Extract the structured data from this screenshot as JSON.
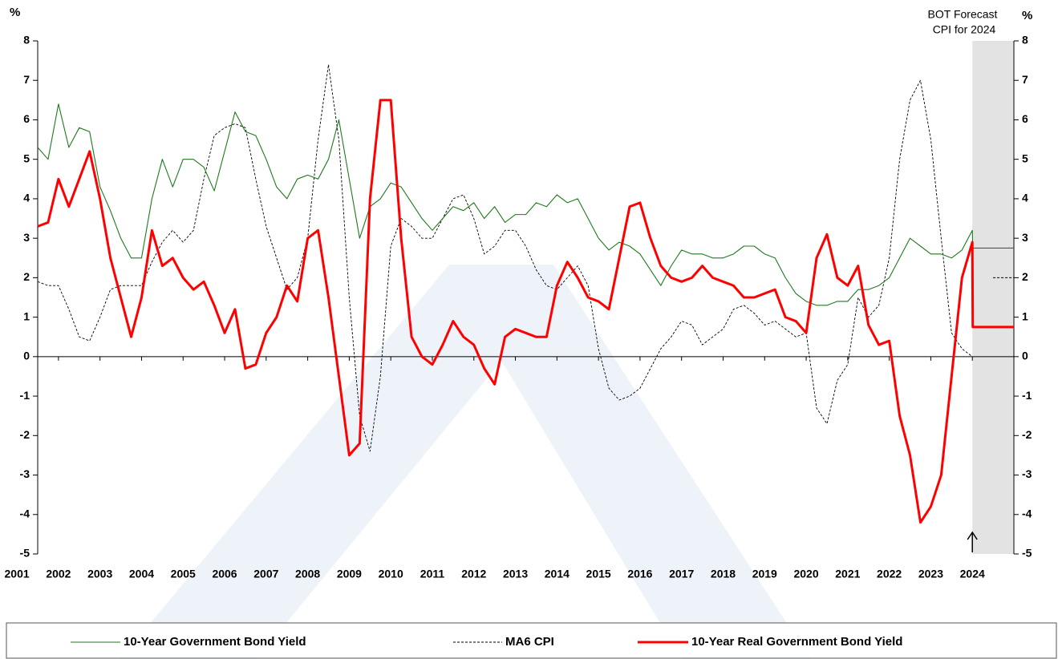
{
  "chart_data": {
    "type": "line",
    "y_label": "%",
    "y2_label": "%",
    "annotation": [
      "BOT Forecast",
      "CPI for 2024"
    ],
    "forecast_start": 2024,
    "xlim": [
      2001.5,
      2025
    ],
    "xticks": [
      2001,
      2002,
      2003,
      2004,
      2005,
      2006,
      2007,
      2008,
      2009,
      2010,
      2011,
      2012,
      2013,
      2014,
      2015,
      2016,
      2017,
      2018,
      2019,
      2020,
      2021,
      2022,
      2023,
      2024
    ],
    "ylim": [
      -5,
      8
    ],
    "yticks": [
      -5,
      -4,
      -3,
      -2,
      -1,
      0,
      1,
      2,
      3,
      4,
      5,
      6,
      7,
      8
    ],
    "x": [
      2001.5,
      2001.75,
      2002,
      2002.25,
      2002.5,
      2002.75,
      2003,
      2003.25,
      2003.5,
      2003.75,
      2004,
      2004.25,
      2004.5,
      2004.75,
      2005,
      2005.25,
      2005.5,
      2005.75,
      2006,
      2006.25,
      2006.5,
      2006.75,
      2007,
      2007.25,
      2007.5,
      2007.75,
      2008,
      2008.25,
      2008.5,
      2008.75,
      2009,
      2009.25,
      2009.5,
      2009.75,
      2010,
      2010.25,
      2010.5,
      2010.75,
      2011,
      2011.25,
      2011.5,
      2011.75,
      2012,
      2012.25,
      2012.5,
      2012.75,
      2013,
      2013.25,
      2013.5,
      2013.75,
      2014,
      2014.25,
      2014.5,
      2014.75,
      2015,
      2015.25,
      2015.5,
      2015.75,
      2016,
      2016.25,
      2016.5,
      2016.75,
      2017,
      2017.25,
      2017.5,
      2017.75,
      2018,
      2018.25,
      2018.5,
      2018.75,
      2019,
      2019.25,
      2019.5,
      2019.75,
      2020,
      2020.25,
      2020.5,
      2020.75,
      2021,
      2021.25,
      2021.5,
      2021.75,
      2022,
      2022.25,
      2022.5,
      2022.75,
      2023,
      2023.25,
      2023.5,
      2023.75,
      2024,
      2024.01,
      2024.5,
      2025
    ],
    "series": [
      {
        "name": "10-Year Government Bond Yield",
        "color": "#1e7a1e",
        "dashed": false,
        "values": [
          5.3,
          5.0,
          6.4,
          5.3,
          5.8,
          5.7,
          4.3,
          3.7,
          3.0,
          2.5,
          2.5,
          4.0,
          5.0,
          4.3,
          5.0,
          5.0,
          4.8,
          4.2,
          5.2,
          6.2,
          5.7,
          5.6,
          5.0,
          4.3,
          4.0,
          4.5,
          4.6,
          4.5,
          5.0,
          6.0,
          4.5,
          3.0,
          3.8,
          4.0,
          4.4,
          4.3,
          3.9,
          3.5,
          3.2,
          3.5,
          3.8,
          3.7,
          3.9,
          3.5,
          3.8,
          3.4,
          3.6,
          3.6,
          3.9,
          3.8,
          4.1,
          3.9,
          4.0,
          3.5,
          3.0,
          2.7,
          2.9,
          2.8,
          2.6,
          2.2,
          1.8,
          2.3,
          2.7,
          2.6,
          2.6,
          2.5,
          2.5,
          2.6,
          2.8,
          2.8,
          2.6,
          2.5,
          2.0,
          1.6,
          1.4,
          1.3,
          1.3,
          1.4,
          1.4,
          1.7,
          1.7,
          1.8,
          2.0,
          2.5,
          3.0,
          2.8,
          2.6,
          2.6,
          2.5,
          2.7,
          3.2,
          2.75,
          2.75,
          2.75
        ]
      },
      {
        "name": "MA6 CPI",
        "color": "#000000",
        "dashed": true,
        "values": [
          1.9,
          1.8,
          1.8,
          1.2,
          0.5,
          0.4,
          1.0,
          1.7,
          1.8,
          1.8,
          1.8,
          2.4,
          2.9,
          3.2,
          2.9,
          3.2,
          4.5,
          5.6,
          5.8,
          5.9,
          5.8,
          4.5,
          3.3,
          2.5,
          1.7,
          2.0,
          3.0,
          5.5,
          7.4,
          5.5,
          1.5,
          -1.5,
          -2.4,
          -0.5,
          2.8,
          3.5,
          3.3,
          3.0,
          3.0,
          3.5,
          4.0,
          4.1,
          3.5,
          2.6,
          2.8,
          3.2,
          3.2,
          2.8,
          2.2,
          1.8,
          1.7,
          2.0,
          2.3,
          1.8,
          0.2,
          -0.8,
          -1.1,
          -1.0,
          -0.8,
          -0.3,
          0.2,
          0.5,
          0.9,
          0.8,
          0.3,
          0.5,
          0.7,
          1.2,
          1.3,
          1.1,
          0.8,
          0.9,
          0.7,
          0.5,
          0.6,
          -1.3,
          -1.7,
          -0.6,
          -0.2,
          1.5,
          1.0,
          1.3,
          2.5,
          5.0,
          6.5,
          7.0,
          5.5,
          3.0,
          0.6,
          0.2,
          0.0,
          null,
          2.0,
          2.0
        ]
      },
      {
        "name": "10-Year Real Government Bond Yield",
        "color": "#ff0000",
        "dashed": false,
        "values": [
          3.3,
          3.4,
          4.5,
          3.8,
          4.5,
          5.2,
          4.0,
          2.5,
          1.5,
          0.5,
          1.5,
          3.2,
          2.3,
          2.5,
          2.0,
          1.7,
          1.9,
          1.3,
          0.6,
          1.2,
          -0.3,
          -0.2,
          0.6,
          1.0,
          1.8,
          1.4,
          3.0,
          3.2,
          1.5,
          -0.5,
          -2.5,
          -2.2,
          4.0,
          6.5,
          6.5,
          3.0,
          0.5,
          0.0,
          -0.2,
          0.3,
          0.9,
          0.5,
          0.3,
          -0.3,
          -0.7,
          0.5,
          0.7,
          0.6,
          0.5,
          0.5,
          1.8,
          2.4,
          2.0,
          1.5,
          1.4,
          1.2,
          2.5,
          3.8,
          3.9,
          3.0,
          2.3,
          2.0,
          1.9,
          2.0,
          2.3,
          2.0,
          1.9,
          1.8,
          1.5,
          1.5,
          1.6,
          1.7,
          1.0,
          0.9,
          0.6,
          2.5,
          3.1,
          2.0,
          1.8,
          2.3,
          0.8,
          0.3,
          0.4,
          -1.5,
          -2.5,
          -4.2,
          -3.8,
          -3.0,
          -0.5,
          2.0,
          2.9,
          0.75,
          0.75,
          0.75
        ]
      }
    ]
  }
}
